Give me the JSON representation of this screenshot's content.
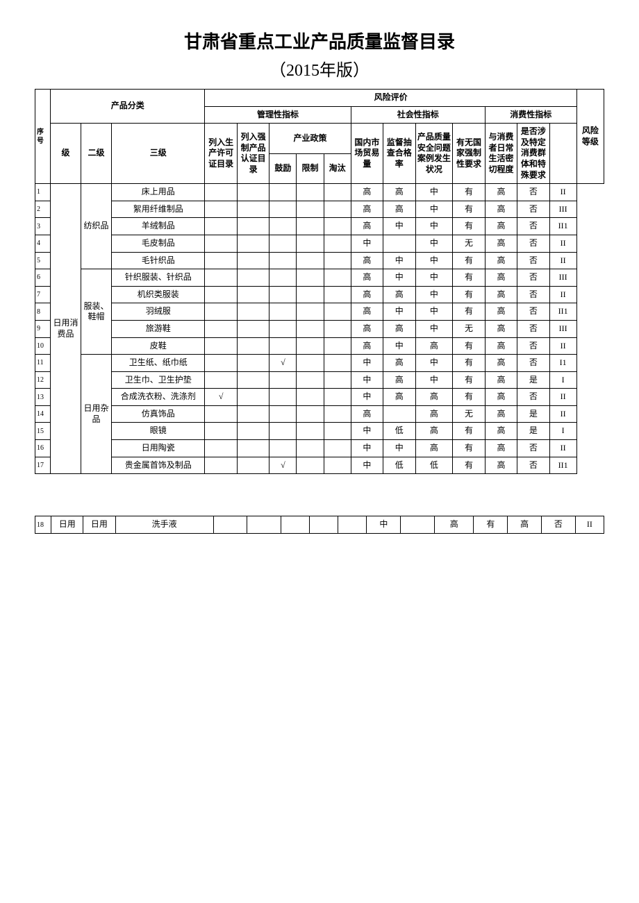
{
  "title": "甘肃省重点工业产品质量监督目录",
  "subtitle": "（2015年版）",
  "headers": {
    "seq": "序号",
    "product_cat": "产品分类",
    "lv1": "级",
    "lv2": "二级",
    "lv3": "三级",
    "risk_eval": "风险评价",
    "mgmt": "管理性指标",
    "social": "社会性指标",
    "consumer": "消费性指标",
    "prod_license": "列入生产许可证目录",
    "cert_dir": "列入强制产品认证目录",
    "policy": "产业政策",
    "encourage": "鼓励",
    "restrict": "限制",
    "eliminate": "淘汰",
    "trade": "国内市场贸易量",
    "pass_rate": "监督抽查合格率",
    "quality_issue": "产品质量安全问题案例发生状况",
    "national_req": "有无国家强制性要求",
    "life_close": "与消费者日常生活密切程度",
    "special_group": "是否涉及特定消费群体和特殊要求",
    "risk_level": "风险等级"
  },
  "rows": [
    {
      "seq": "1",
      "lv1": "日用消费品",
      "lv2": "纺织品",
      "lv3": "床上用品",
      "lic": "",
      "cert": "",
      "enc": "",
      "res": "",
      "eli": "",
      "trade": "高",
      "pass": "高",
      "qi": "中",
      "nat": "有",
      "life": "高",
      "sp": "否",
      "rl": "II"
    },
    {
      "seq": "2",
      "lv3": "絮用纤维制品",
      "lic": "",
      "cert": "",
      "enc": "",
      "res": "",
      "eli": "",
      "trade": "高",
      "pass": "高",
      "qi": "中",
      "nat": "有",
      "life": "高",
      "sp": "否",
      "rl": "III"
    },
    {
      "seq": "3",
      "lv3": "羊绒制品",
      "lic": "",
      "cert": "",
      "enc": "",
      "res": "",
      "eli": "",
      "trade": "高",
      "pass": "中",
      "qi": "中",
      "nat": "有",
      "life": "高",
      "sp": "否",
      "rl": "II1"
    },
    {
      "seq": "4",
      "lv3": "毛皮制品",
      "lic": "",
      "cert": "",
      "enc": "",
      "res": "",
      "eli": "",
      "trade": "中",
      "pass": "",
      "qi": "中",
      "nat": "无",
      "life": "高",
      "sp": "否",
      "rl": "II"
    },
    {
      "seq": "5",
      "lv3": "毛针织品",
      "lic": "",
      "cert": "",
      "enc": "",
      "res": "",
      "eli": "",
      "trade": "高",
      "pass": "中",
      "qi": "中",
      "nat": "有",
      "life": "高",
      "sp": "否",
      "rl": "II"
    },
    {
      "seq": "6",
      "lv2": "服装、鞋帽",
      "lv3": "针织服装、针织品",
      "lic": "",
      "cert": "",
      "enc": "",
      "res": "",
      "eli": "",
      "trade": "高",
      "pass": "中",
      "qi": "中",
      "nat": "有",
      "life": "高",
      "sp": "否",
      "rl": "III"
    },
    {
      "seq": "7",
      "lv3": "机织类服装",
      "lic": "",
      "cert": "",
      "enc": "",
      "res": "",
      "eli": "",
      "trade": "高",
      "pass": "高",
      "qi": "中",
      "nat": "有",
      "life": "高",
      "sp": "否",
      "rl": "II"
    },
    {
      "seq": "8",
      "lv3": "羽绒服",
      "lic": "",
      "cert": "",
      "enc": "",
      "res": "",
      "eli": "",
      "trade": "高",
      "pass": "中",
      "qi": "中",
      "nat": "有",
      "life": "高",
      "sp": "否",
      "rl": "II1"
    },
    {
      "seq": "9",
      "lv3": "旅游鞋",
      "lic": "",
      "cert": "",
      "enc": "",
      "res": "",
      "eli": "",
      "trade": "高",
      "pass": "高",
      "qi": "中",
      "nat": "无",
      "life": "高",
      "sp": "否",
      "rl": "III"
    },
    {
      "seq": "10",
      "lv3": "皮鞋",
      "lic": "",
      "cert": "",
      "enc": "",
      "res": "",
      "eli": "",
      "trade": "高",
      "pass": "中",
      "qi": "高",
      "nat": "有",
      "life": "高",
      "sp": "否",
      "rl": "II"
    },
    {
      "seq": "11",
      "lv2": "日用杂品",
      "lv3": "卫生纸、纸巾纸",
      "lic": "",
      "cert": "",
      "enc": "√",
      "res": "",
      "eli": "",
      "trade": "中",
      "pass": "高",
      "qi": "中",
      "nat": "有",
      "life": "高",
      "sp": "否",
      "rl": "I1"
    },
    {
      "seq": "12",
      "lv3": "卫生巾、卫生护垫",
      "lic": "",
      "cert": "",
      "enc": "",
      "res": "",
      "eli": "",
      "trade": "中",
      "pass": "高",
      "qi": "中",
      "nat": "有",
      "life": "高",
      "sp": "是",
      "rl": "I"
    },
    {
      "seq": "13",
      "lv3": "合成洗衣粉、洗涤剂",
      "lic": "√",
      "cert": "",
      "enc": "",
      "res": "",
      "eli": "",
      "trade": "中",
      "pass": "高",
      "qi": "高",
      "nat": "有",
      "life": "高",
      "sp": "否",
      "rl": "II"
    },
    {
      "seq": "14",
      "lv3": "仿真饰品",
      "lic": "",
      "cert": "",
      "enc": "",
      "res": "",
      "eli": "",
      "trade": "高",
      "pass": "",
      "qi": "高",
      "nat": "无",
      "life": "高",
      "sp": "是",
      "rl": "II"
    },
    {
      "seq": "15",
      "lv3": "眼镜",
      "lic": "",
      "cert": "",
      "enc": "",
      "res": "",
      "eli": "",
      "trade": "中",
      "pass": "低",
      "qi": "高",
      "nat": "有",
      "life": "高",
      "sp": "是",
      "rl": "I"
    },
    {
      "seq": "16",
      "lv3": "日用陶瓷",
      "lic": "",
      "cert": "",
      "enc": "",
      "res": "",
      "eli": "",
      "trade": "中",
      "pass": "中",
      "qi": "高",
      "nat": "有",
      "life": "高",
      "sp": "否",
      "rl": "II"
    },
    {
      "seq": "17",
      "lv3": "贵金属首饰及制品",
      "lic": "",
      "cert": "",
      "enc": "√",
      "res": "",
      "eli": "",
      "trade": "中",
      "pass": "低",
      "qi": "低",
      "nat": "有",
      "life": "高",
      "sp": "否",
      "rl": "II1"
    }
  ],
  "rows2": [
    {
      "seq": "18",
      "lv1": "日用",
      "lv2": "日用",
      "lv3": "洗手液",
      "lic": "",
      "cert": "",
      "enc": "",
      "res": "",
      "eli": "",
      "trade": "中",
      "pass": "",
      "qi": "高",
      "nat": "有",
      "life": "高",
      "sp": "否",
      "rl": "II"
    }
  ]
}
